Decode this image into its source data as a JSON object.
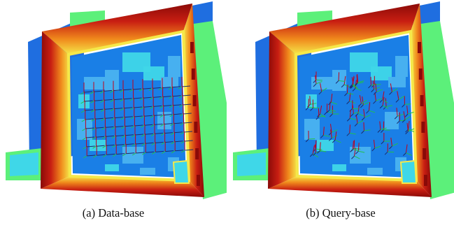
{
  "figure": {
    "panels": [
      {
        "id": "a",
        "caption": "(a) Data-base",
        "variant": "database"
      },
      {
        "id": "b",
        "caption": "(b) Query-base",
        "variant": "query"
      }
    ],
    "colors": {
      "floor_blue": "#1a7fe6",
      "light_blue": "#4ab3f0",
      "cyan": "#3fd7e8",
      "wall_green": "#5cf07a",
      "wall_blue": "#1f6ee0",
      "frame_yellow": "#f5e84a",
      "frame_orange": "#f08a1c",
      "frame_red": "#c81e12",
      "frame_darkred": "#8a0a08",
      "pose_red": "#c0001a",
      "pose_green": "#22c04a"
    }
  }
}
